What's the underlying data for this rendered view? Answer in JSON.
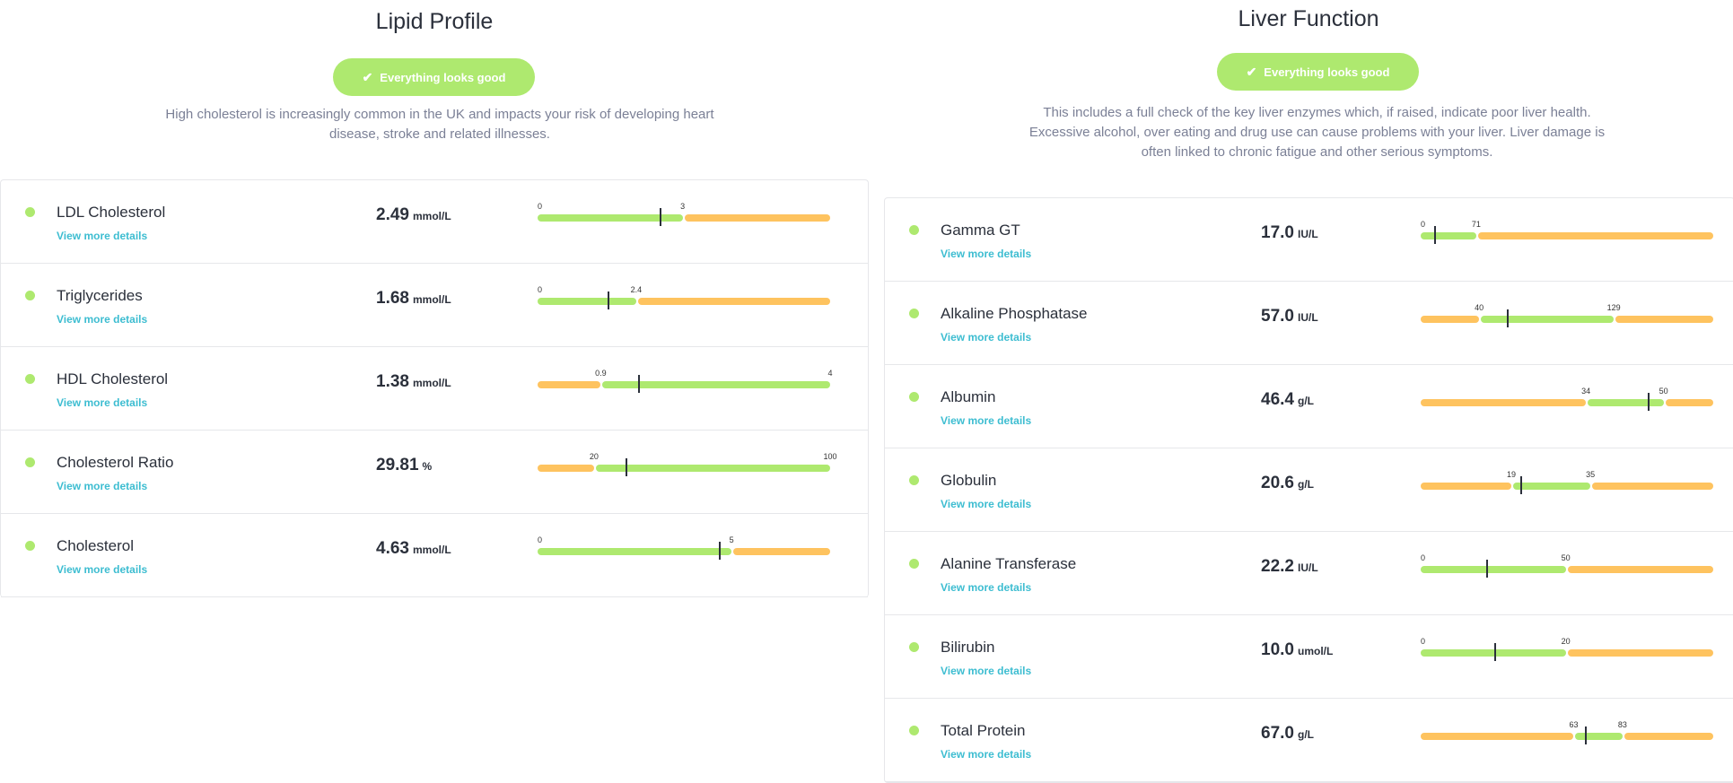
{
  "colors": {
    "good": "#aee96f",
    "warn": "#fec35f",
    "link": "#3dbdd1"
  },
  "lipid": {
    "title": "Lipid Profile",
    "badge": {
      "icon": "check-icon",
      "label": "Everything looks good"
    },
    "description": "High cholesterol is increasingly common in the UK and impacts your risk of developing heart disease, stroke and related illnesses.",
    "rows": [
      {
        "name": "LDL Cholesterol",
        "link": "View more details",
        "value": "2.49",
        "unit": "mmol/L",
        "status": "good",
        "segments": [
          {
            "color": "green",
            "to": 0.496
          },
          {
            "color": "orange",
            "to": 1
          }
        ],
        "labels": [
          {
            "text": "0",
            "at": 0
          },
          {
            "text": "3",
            "at": 0.496
          }
        ],
        "marker": 0.417
      },
      {
        "name": "Triglycerides",
        "link": "View more details",
        "value": "1.68",
        "unit": "mmol/L",
        "status": "good",
        "segments": [
          {
            "color": "green",
            "to": 0.337
          },
          {
            "color": "orange",
            "to": 1
          }
        ],
        "labels": [
          {
            "text": "0",
            "at": 0
          },
          {
            "text": "2.4",
            "at": 0.337
          }
        ],
        "marker": 0.239
      },
      {
        "name": "HDL Cholesterol",
        "link": "View more details",
        "value": "1.38",
        "unit": "mmol/L",
        "status": "good",
        "segments": [
          {
            "color": "orange",
            "to": 0.216
          },
          {
            "color": "green",
            "to": 1
          }
        ],
        "labels": [
          {
            "text": "0.9",
            "at": 0.216
          },
          {
            "text": "4",
            "at": 1
          }
        ],
        "marker": 0.345
      },
      {
        "name": "Cholesterol Ratio",
        "link": "View more details",
        "value": "29.81",
        "unit": "%",
        "status": "good",
        "segments": [
          {
            "color": "orange",
            "to": 0.193
          },
          {
            "color": "green",
            "to": 1
          }
        ],
        "labels": [
          {
            "text": "20",
            "at": 0.193
          },
          {
            "text": "100",
            "at": 1
          }
        ],
        "marker": 0.3
      },
      {
        "name": "Cholesterol",
        "link": "View more details",
        "value": "4.63",
        "unit": "mmol/L",
        "status": "good",
        "segments": [
          {
            "color": "green",
            "to": 0.663
          },
          {
            "color": "orange",
            "to": 1
          }
        ],
        "labels": [
          {
            "text": "0",
            "at": 0
          },
          {
            "text": "5",
            "at": 0.663
          }
        ],
        "marker": 0.62
      }
    ]
  },
  "liver": {
    "title": "Liver Function",
    "badge": {
      "icon": "check-icon",
      "label": "Everything looks good"
    },
    "description": "This includes a full check of the key liver enzymes which, if raised, indicate poor liver health. Excessive alcohol, over eating and drug use can cause problems with your liver. Liver damage is often linked to chronic fatigue and other serious symptoms.",
    "rows": [
      {
        "name": "Gamma GT",
        "link": "View more details",
        "value": "17.0",
        "unit": "IU/L",
        "status": "good",
        "segments": [
          {
            "color": "green",
            "to": 0.19
          },
          {
            "color": "orange",
            "to": 1
          }
        ],
        "labels": [
          {
            "text": "0",
            "at": 0
          },
          {
            "text": "71",
            "at": 0.19
          }
        ],
        "marker": 0.045
      },
      {
        "name": "Alkaline Phosphatase",
        "link": "View more details",
        "value": "57.0",
        "unit": "IU/L",
        "status": "good",
        "segments": [
          {
            "color": "orange",
            "to": 0.2
          },
          {
            "color": "green",
            "to": 0.66
          },
          {
            "color": "orange",
            "to": 1
          }
        ],
        "labels": [
          {
            "text": "40",
            "at": 0.2
          },
          {
            "text": "129",
            "at": 0.66
          }
        ],
        "marker": 0.295
      },
      {
        "name": "Albumin",
        "link": "View more details",
        "value": "46.4",
        "unit": "g/L",
        "status": "good",
        "segments": [
          {
            "color": "orange",
            "to": 0.565
          },
          {
            "color": "green",
            "to": 0.83
          },
          {
            "color": "orange",
            "to": 1
          }
        ],
        "labels": [
          {
            "text": "34",
            "at": 0.565
          },
          {
            "text": "50",
            "at": 0.83
          }
        ],
        "marker": 0.776
      },
      {
        "name": "Globulin",
        "link": "View more details",
        "value": "20.6",
        "unit": "g/L",
        "status": "good",
        "segments": [
          {
            "color": "orange",
            "to": 0.31
          },
          {
            "color": "green",
            "to": 0.58
          },
          {
            "color": "orange",
            "to": 1
          }
        ],
        "labels": [
          {
            "text": "19",
            "at": 0.31
          },
          {
            "text": "35",
            "at": 0.58
          }
        ],
        "marker": 0.34
      },
      {
        "name": "Alanine Transferase",
        "link": "View more details",
        "value": "22.2",
        "unit": "IU/L",
        "status": "good",
        "segments": [
          {
            "color": "green",
            "to": 0.496
          },
          {
            "color": "orange",
            "to": 1
          }
        ],
        "labels": [
          {
            "text": "0",
            "at": 0
          },
          {
            "text": "50",
            "at": 0.496
          }
        ],
        "marker": 0.223
      },
      {
        "name": "Bilirubin",
        "link": "View more details",
        "value": "10.0",
        "unit": "umol/L",
        "status": "good",
        "segments": [
          {
            "color": "green",
            "to": 0.496
          },
          {
            "color": "orange",
            "to": 1
          }
        ],
        "labels": [
          {
            "text": "0",
            "at": 0
          },
          {
            "text": "20",
            "at": 0.496
          }
        ],
        "marker": 0.25
      },
      {
        "name": "Total Protein",
        "link": "View more details",
        "value": "67.0",
        "unit": "g/L",
        "status": "good",
        "segments": [
          {
            "color": "orange",
            "to": 0.523
          },
          {
            "color": "green",
            "to": 0.69
          },
          {
            "color": "orange",
            "to": 1
          }
        ],
        "labels": [
          {
            "text": "63",
            "at": 0.523
          },
          {
            "text": "83",
            "at": 0.69
          }
        ],
        "marker": 0.56
      }
    ]
  }
}
